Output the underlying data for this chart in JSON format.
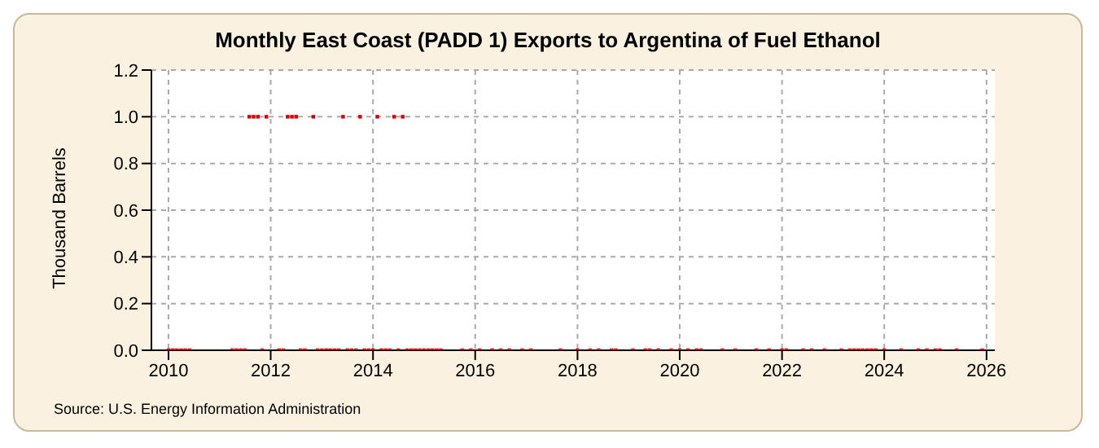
{
  "chart_data": {
    "type": "scatter",
    "title": "Monthly East Coast (PADD 1) Exports to Argentina of Fuel Ethanol",
    "ylabel": "Thousand Barrels",
    "annotations": [
      "Source: U.S. Energy Information Administration"
    ],
    "series": [
      {
        "color": "#dd0000",
        "x": [
          "2010-01",
          "2010-02",
          "2010-03",
          "2010-04",
          "2010-05",
          "2010-06",
          "2011-04",
          "2011-05",
          "2011-06",
          "2011-07",
          "2011-08",
          "2011-09",
          "2011-10",
          "2011-11",
          "2011-12",
          "2012-03",
          "2012-04",
          "2012-05",
          "2012-06",
          "2012-07",
          "2012-08",
          "2012-09",
          "2012-11",
          "2012-12",
          "2013-01",
          "2013-02",
          "2013-03",
          "2013-04",
          "2013-05",
          "2013-06",
          "2013-07",
          "2013-08",
          "2013-09",
          "2013-10",
          "2013-11",
          "2013-12",
          "2014-01",
          "2014-02",
          "2014-03",
          "2014-04",
          "2014-05",
          "2014-06",
          "2014-07",
          "2014-08",
          "2014-09",
          "2014-10",
          "2014-11",
          "2014-12",
          "2015-01",
          "2015-02",
          "2015-03",
          "2015-04",
          "2015-05",
          "2015-10",
          "2015-12",
          "2016-02",
          "2016-05",
          "2016-07",
          "2016-09",
          "2016-12",
          "2017-02",
          "2017-09",
          "2018-01",
          "2018-04",
          "2018-06",
          "2018-09",
          "2018-10",
          "2019-02",
          "2019-05",
          "2019-06",
          "2019-08",
          "2019-11",
          "2020-01",
          "2020-03",
          "2020-05",
          "2020-06",
          "2020-11",
          "2021-02",
          "2021-07",
          "2021-10",
          "2022-01",
          "2022-02",
          "2022-06",
          "2022-08",
          "2022-11",
          "2023-03",
          "2023-05",
          "2023-06",
          "2023-07",
          "2023-08",
          "2023-09",
          "2023-10",
          "2023-11",
          "2024-01",
          "2024-05",
          "2024-09",
          "2024-11",
          "2025-01",
          "2025-02",
          "2025-06",
          "2025-12"
        ],
        "values": [
          0,
          0,
          0,
          0,
          0,
          0,
          0,
          0,
          0,
          0,
          1,
          1,
          1,
          0,
          1,
          0,
          0,
          1,
          1,
          1,
          0,
          0,
          1,
          0,
          0,
          0,
          0,
          0,
          0,
          1,
          0,
          0,
          0,
          1,
          0,
          0,
          0,
          1,
          0,
          0,
          0,
          1,
          0,
          1,
          0,
          0,
          0,
          0,
          0,
          0,
          0,
          0,
          0,
          0,
          0,
          0,
          0,
          0,
          0,
          0,
          0,
          0,
          0,
          0,
          0,
          0,
          0,
          0,
          0,
          0,
          0,
          0,
          0,
          0,
          0,
          0,
          0,
          0,
          0,
          0,
          0,
          0,
          0,
          0,
          0,
          0,
          0,
          0,
          0,
          0,
          0,
          0,
          0,
          0,
          0,
          0,
          0,
          0,
          0,
          0,
          0
        ]
      }
    ],
    "xlim": [
      "2009-09",
      "2026-03"
    ],
    "xticks": [
      "2010",
      "2012",
      "2014",
      "2016",
      "2018",
      "2020",
      "2022",
      "2024",
      "2026"
    ],
    "ylim": [
      0,
      1.2
    ],
    "yticks": [
      {
        "value": 0,
        "label": "0.0"
      },
      0.2,
      0.4,
      0.6,
      0.8,
      {
        "value": 1,
        "label": "1.0"
      },
      1.2
    ],
    "grid": true,
    "legend": false,
    "marker": "square"
  }
}
